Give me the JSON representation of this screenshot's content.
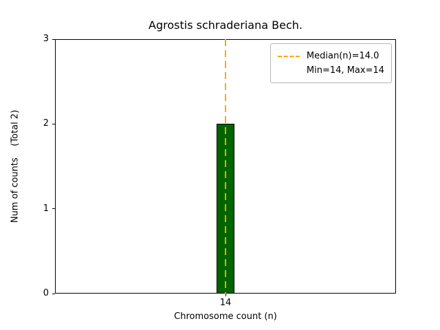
{
  "chart_data": {
    "type": "bar",
    "title": "Agrostis schraderiana Bech.",
    "xlabel": "Chromosome count (n)",
    "ylabel": "Num of counts    (Total 2)",
    "categories": [
      "14"
    ],
    "values": [
      2
    ],
    "ylim": [
      0,
      3
    ],
    "yticks": [
      0,
      1,
      2,
      3
    ],
    "grid": false,
    "bar_color": "#006400",
    "bar_edge_color": "#000000",
    "median_line": {
      "x": 14,
      "color": "#FFA500",
      "style": "dashed"
    },
    "legend": {
      "position": "upper right",
      "entries": [
        {
          "label": "Median(n)=14.0",
          "marker": "dashed-line",
          "color": "#FFA500"
        },
        {
          "label": "Min=14, Max=14",
          "marker": "none"
        }
      ]
    }
  }
}
